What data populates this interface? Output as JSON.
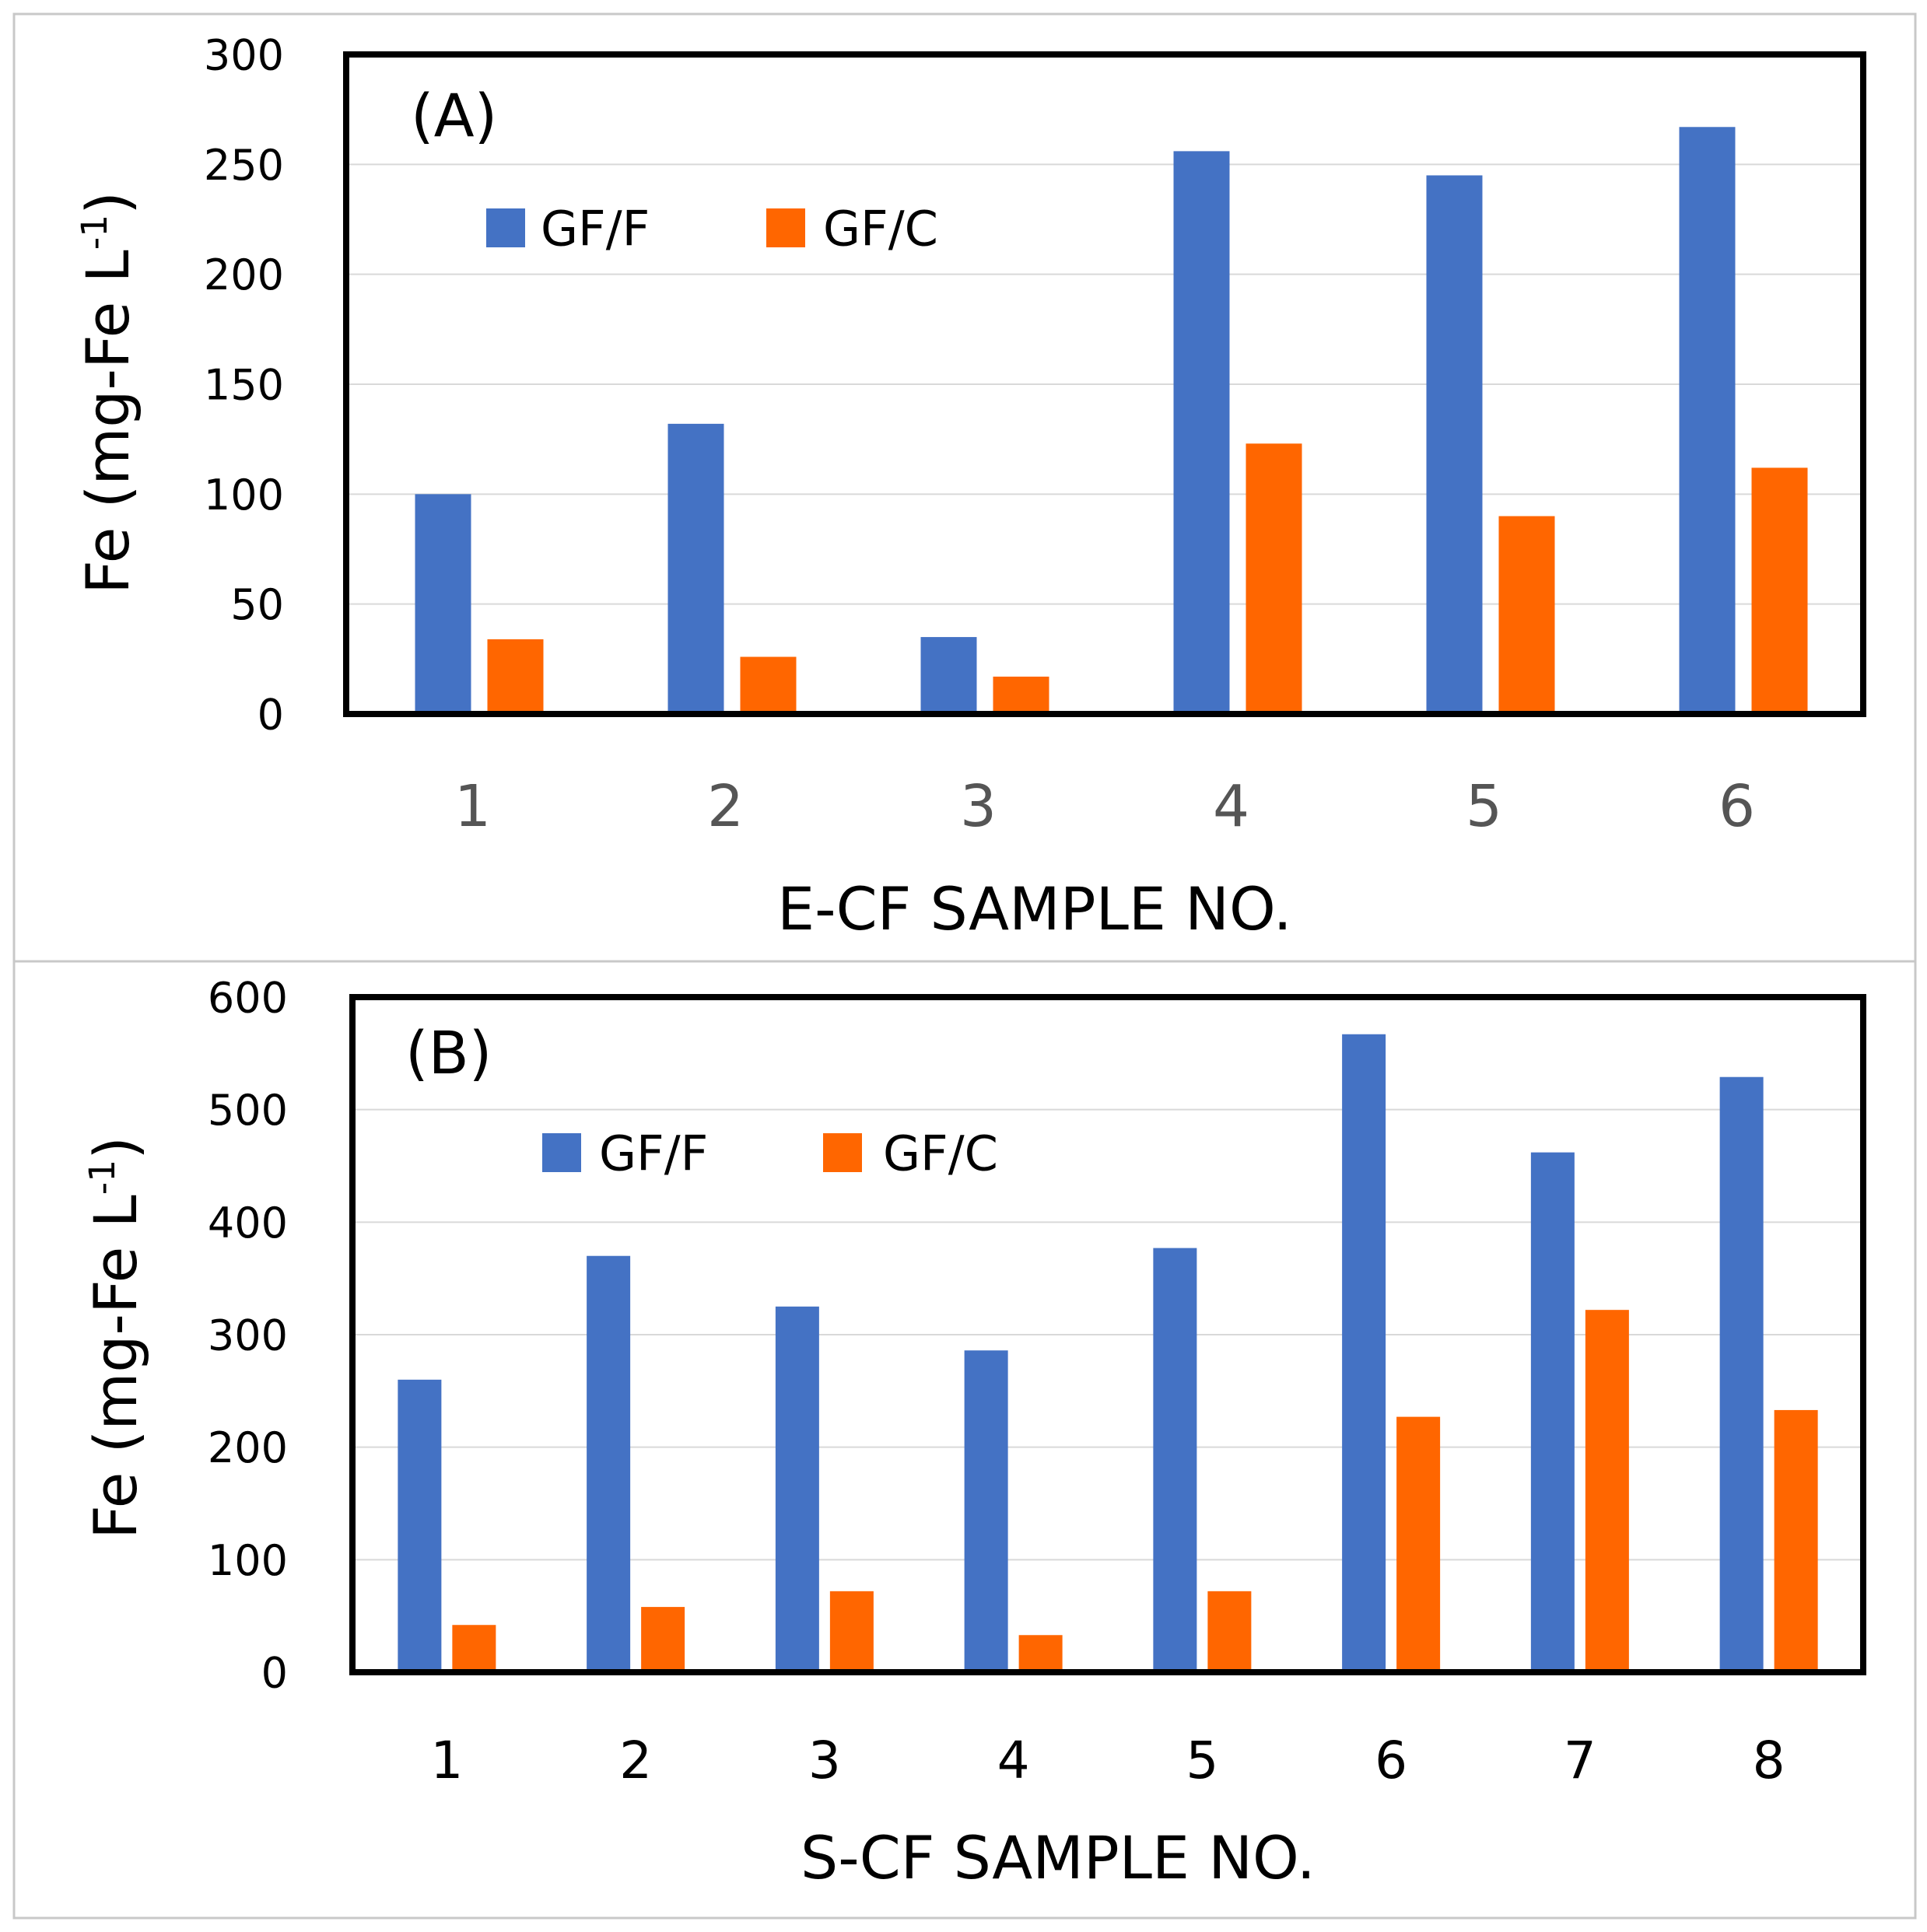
{
  "chart_data": [
    {
      "type": "bar",
      "panel_label": "(A)",
      "categories": [
        "1",
        "2",
        "3",
        "4",
        "5",
        "6"
      ],
      "series": [
        {
          "name": "GF/F",
          "color": "#4472C4",
          "values": [
            100,
            132,
            35,
            256,
            245,
            267
          ]
        },
        {
          "name": "GF/C",
          "color": "#FF6600",
          "values": [
            34,
            26,
            17,
            123,
            90,
            112
          ]
        }
      ],
      "xlabel": "E-CF SAMPLE NO.",
      "ylabel": "Fe (mg-Fe L",
      "ylabel_superscript": "-1",
      "ylabel_close": ")",
      "ylim": [
        0,
        300
      ],
      "yticks": [
        0,
        50,
        100,
        150,
        200,
        250,
        300
      ],
      "grid": true,
      "legend_position": "top-left"
    },
    {
      "type": "bar",
      "panel_label": "(B)",
      "categories": [
        "1",
        "2",
        "3",
        "4",
        "5",
        "6",
        "7",
        "8"
      ],
      "series": [
        {
          "name": "GF/F",
          "color": "#4472C4",
          "values": [
            260,
            370,
            325,
            286,
            377,
            567,
            462,
            529
          ]
        },
        {
          "name": "GF/C",
          "color": "#FF6600",
          "values": [
            42,
            58,
            72,
            33,
            72,
            227,
            322,
            233
          ]
        }
      ],
      "xlabel": "S-CF SAMPLE NO.",
      "ylabel": "Fe (mg-Fe L",
      "ylabel_superscript": "-1",
      "ylabel_close": ")",
      "ylim": [
        0,
        600
      ],
      "yticks": [
        0,
        100,
        200,
        300,
        400,
        500,
        600
      ],
      "grid": true,
      "legend_position": "top-left"
    }
  ]
}
